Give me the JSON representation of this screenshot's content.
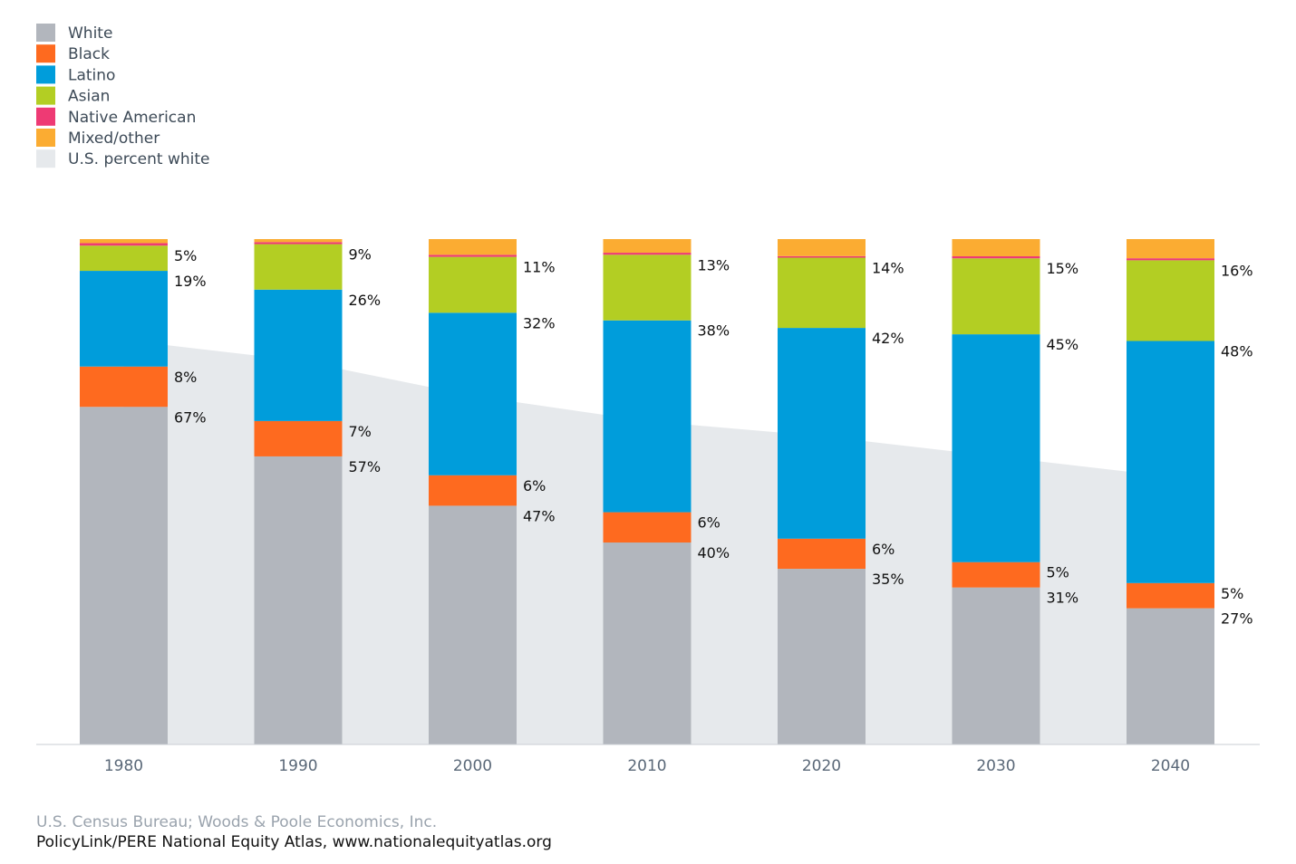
{
  "chart_data": {
    "type": "bar",
    "stacked": true,
    "categories": [
      "1980",
      "1990",
      "2000",
      "2010",
      "2020",
      "2030",
      "2040"
    ],
    "series": [
      {
        "name": "White",
        "color": "#b2b6bd",
        "values": [
          67,
          57,
          47,
          40,
          35,
          31,
          27
        ]
      },
      {
        "name": "Black",
        "color": "#fe6a1f",
        "values": [
          8,
          7,
          6,
          6,
          6,
          5,
          5
        ]
      },
      {
        "name": "Latino",
        "color": "#009ddb",
        "values": [
          19,
          26,
          32,
          38,
          42,
          45,
          48
        ]
      },
      {
        "name": "Asian",
        "color": "#b3ce23",
        "values": [
          5,
          9,
          11,
          13,
          14,
          15,
          16
        ]
      },
      {
        "name": "Native American",
        "color": "#ee3a74",
        "values": [
          0.5,
          0.4,
          0.4,
          0.4,
          0.3,
          0.4,
          0.4
        ]
      },
      {
        "name": "Mixed/other",
        "color": "#fbac32",
        "values": [
          0.8,
          0.6,
          3.1,
          2.7,
          3.4,
          3.4,
          3.8
        ]
      }
    ],
    "labeled_series": [
      "White",
      "Black",
      "Latino",
      "Asian"
    ],
    "value_suffix": "%",
    "area_series": {
      "name": "U.S. percent white",
      "color": "#e6e9ec",
      "values": [
        80,
        76,
        69,
        64,
        61,
        57,
        53
      ]
    },
    "ylim": [
      0,
      100
    ],
    "legend_position": "top-left",
    "grid": false,
    "title": "",
    "xlabel": "",
    "ylabel": ""
  },
  "source": {
    "line1": "U.S. Census Bureau; Woods & Poole Economics, Inc.",
    "line2": "PolicyLink/PERE National Equity Atlas, www.nationalequityatlas.org"
  }
}
